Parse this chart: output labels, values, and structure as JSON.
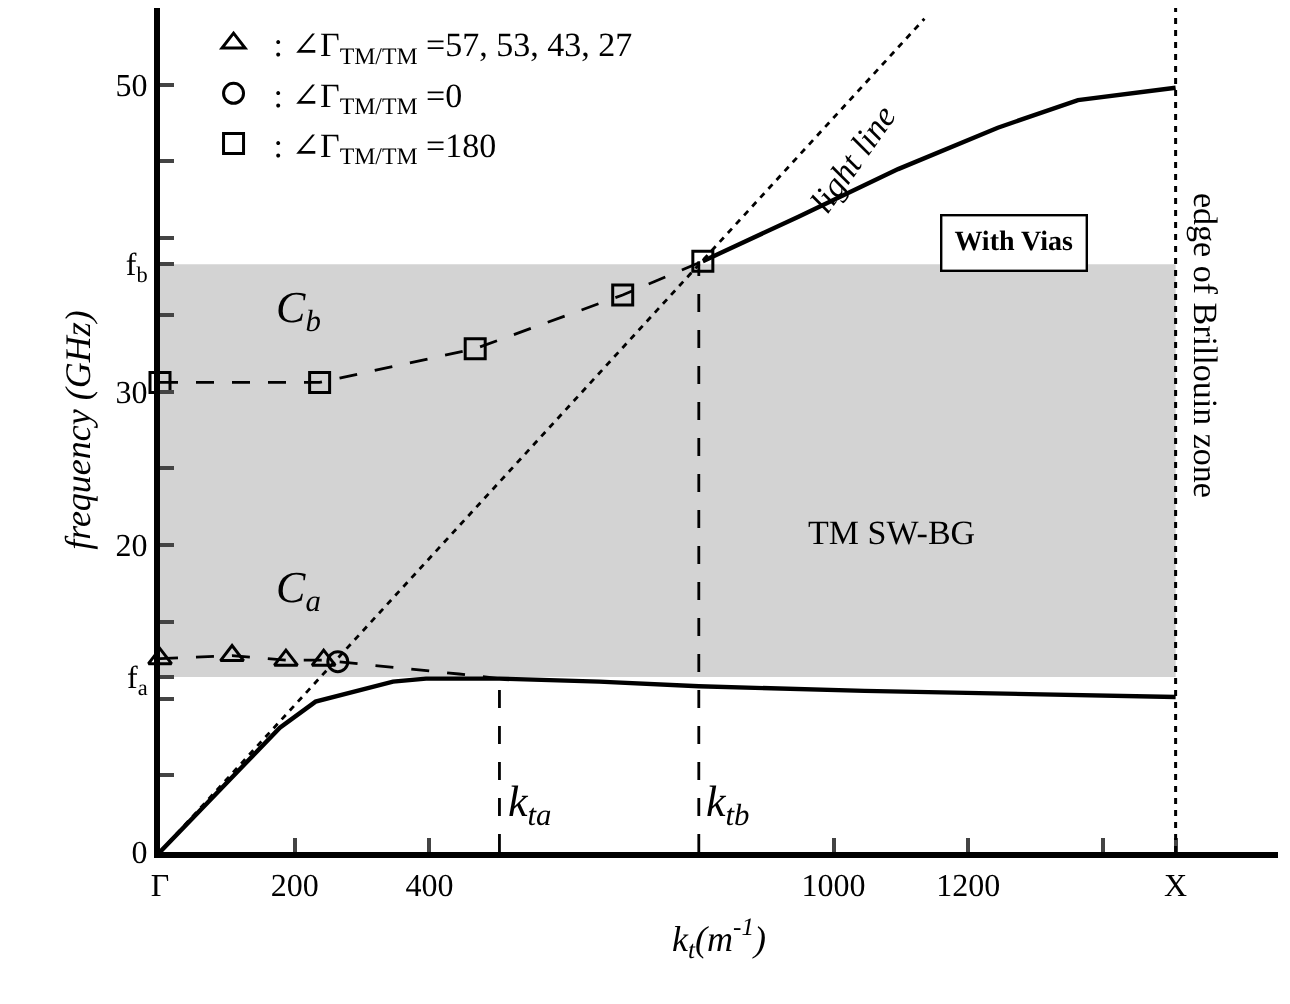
{
  "chart_data": {
    "type": "line",
    "xlabel": "k$_{t}$(m$^{-1}$)",
    "ylabel": "frequency (GHz)",
    "xlim": [
      0,
      1660
    ],
    "ylim": [
      0,
      55
    ],
    "xticks": [
      {
        "value": 0,
        "label": "Γ"
      },
      200,
      400,
      1000,
      1200,
      {
        "value": 1400,
        "label": null
      },
      {
        "value": 1508,
        "label": "X"
      }
    ],
    "yticks": [
      0,
      {
        "value": 5,
        "label": null
      },
      {
        "value": 10,
        "label": null
      },
      {
        "value": 11.4,
        "label": "f$_{a}$"
      },
      {
        "value": 15,
        "label": null
      },
      20,
      {
        "value": 25,
        "label": null
      },
      30,
      {
        "value": 35,
        "label": null
      },
      {
        "value": 38.3,
        "label": "f$_{b}$"
      },
      {
        "value": 40,
        "label": null
      },
      {
        "value": 45,
        "label": null
      },
      50
    ],
    "grid": false,
    "legend": "top left",
    "series": [
      {
        "color": "#000000",
        "line_style": "solid",
        "marker": "none",
        "x": [
          0,
          178,
          231,
          346,
          395,
          504,
          652,
          800,
          1046,
          1508
        ],
        "values": [
          0,
          8.1,
          9.8,
          11.1,
          11.3,
          11.3,
          11.1,
          10.8,
          10.5,
          10.1
        ]
      },
      {
        "color": "#000000",
        "line_style": "solid",
        "marker": "none",
        "x": [
          806,
          948,
          1096,
          1244,
          1363,
          1508
        ],
        "values": [
          38.5,
          41.4,
          44.5,
          47.2,
          49,
          49.8
        ]
      },
      {
        "color": "#000000",
        "line_style": "dotted",
        "marker": "none",
        "x": [
          0,
          1135
        ],
        "values": [
          0,
          54.3
        ]
      },
      {
        "color": "#000000",
        "line_style": "dashed",
        "marker": "none",
        "x": [
          0,
          237,
          468,
          687,
          806
        ],
        "values": [
          30.6,
          30.6,
          32.8,
          36.3,
          38.5
        ]
      },
      {
        "color": "#000000",
        "line_style": "dashed",
        "marker": "none",
        "x": [
          0,
          107,
          187,
          243,
          264,
          444,
          504
        ],
        "values": [
          12.6,
          12.8,
          12.5,
          12.5,
          12.4,
          11.6,
          11.3
        ]
      },
      {
        "color": "#000000",
        "line_style": "dashed",
        "marker": "none",
        "x": [
          504,
          504
        ],
        "values": [
          0,
          11.3
        ]
      },
      {
        "color": "#000000",
        "line_style": "dashed",
        "marker": "none",
        "x": [
          800,
          800
        ],
        "values": [
          0,
          38.5
        ]
      },
      {
        "type": "scatter",
        "name": ": ∠Γ$_{TM/TM}$ =57, 53, 43, 27",
        "color": "#000000",
        "marker": "triangle",
        "x": [
          0,
          107,
          187,
          243
        ],
        "values": [
          12.6,
          12.8,
          12.5,
          12.5
        ]
      },
      {
        "type": "scatter",
        "name": ": ∠Γ$_{TM/TM}$ =0",
        "color": "#000000",
        "marker": "circle",
        "x": [
          264
        ],
        "values": [
          12.4
        ]
      },
      {
        "type": "scatter",
        "name": ": ∠Γ$_{TM/TM}$ =180",
        "color": "#000000",
        "marker": "square",
        "x": [
          0,
          237,
          468,
          687,
          806
        ],
        "values": [
          30.6,
          30.6,
          32.8,
          36.3,
          38.5
        ]
      }
    ],
    "bands": [
      {
        "axis": "y",
        "from": 11.4,
        "to": 38.3,
        "label": "TM SW-BG",
        "color": "#d3d3d3"
      }
    ],
    "ref_lines": [
      {
        "axis": "x",
        "value": 1508,
        "label": "edge of Brillouin zone",
        "line_style": "dotted",
        "color": "#000000"
      }
    ],
    "annotations": [
      "With Vias",
      "light line",
      "C$_{b}$",
      "C$_{a}$",
      {
        "text": "k$_{ta}$",
        "x": 504,
        "y": 3
      },
      {
        "text": "k$_{tb}$",
        "x": 800,
        "y": 3
      }
    ]
  }
}
